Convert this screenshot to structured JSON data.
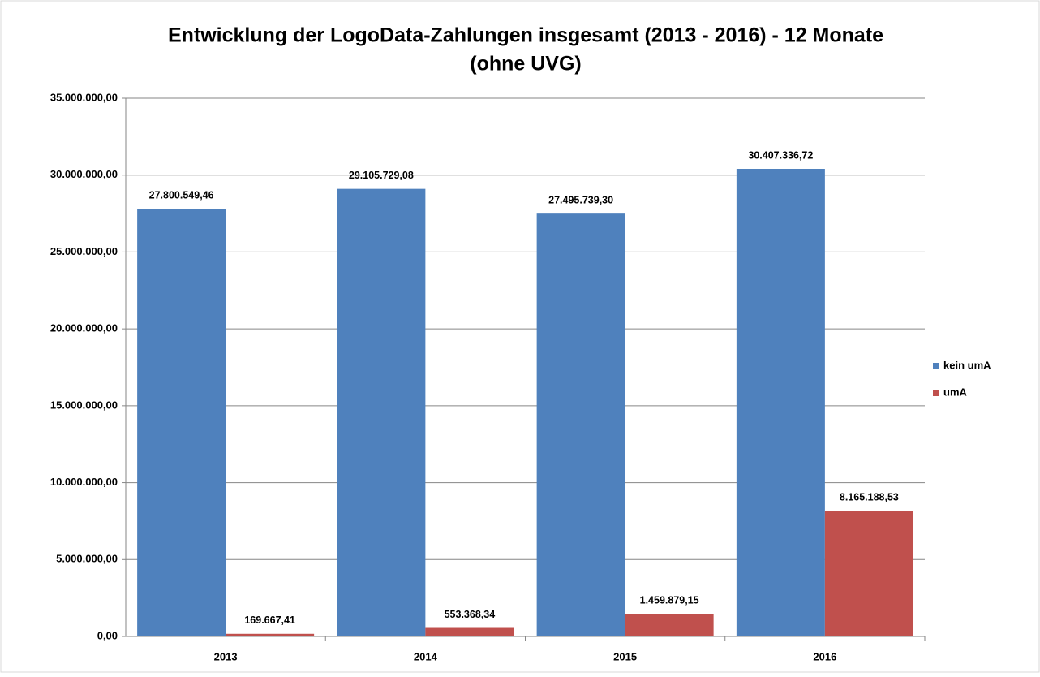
{
  "chart_data": {
    "type": "bar",
    "title": [
      "Entwicklung der LogoData-Zahlungen insgesamt (2013 - 2016) - 12 Monate",
      "(ohne UVG)"
    ],
    "categories": [
      "2013",
      "2014",
      "2015",
      "2016"
    ],
    "series": [
      {
        "name": "kein umA",
        "color": "#4f81bd",
        "values": [
          27800549.46,
          29105729.08,
          27495739.3,
          30407336.72
        ],
        "value_labels": [
          "27.800.549,46",
          "29.105.729,08",
          "27.495.739,30",
          "30.407.336,72"
        ]
      },
      {
        "name": "umA",
        "color": "#c0504d",
        "values": [
          169667.41,
          553368.34,
          1459879.15,
          8165188.53
        ],
        "value_labels": [
          "169.667,41",
          "553.368,34",
          "1.459.879,15",
          "8.165.188,53"
        ]
      }
    ],
    "ylim": [
      0,
      35000000
    ],
    "yticks": [
      {
        "value": 0,
        "label": "0,00"
      },
      {
        "value": 5000000,
        "label": "5.000.000,00"
      },
      {
        "value": 10000000,
        "label": "10.000.000,00"
      },
      {
        "value": 15000000,
        "label": "15.000.000,00"
      },
      {
        "value": 20000000,
        "label": "20.000.000,00"
      },
      {
        "value": 25000000,
        "label": "25.000.000,00"
      },
      {
        "value": 30000000,
        "label": "30.000.000,00"
      },
      {
        "value": 35000000,
        "label": "35.000.000,00"
      }
    ],
    "grid": true,
    "legend": "right"
  }
}
